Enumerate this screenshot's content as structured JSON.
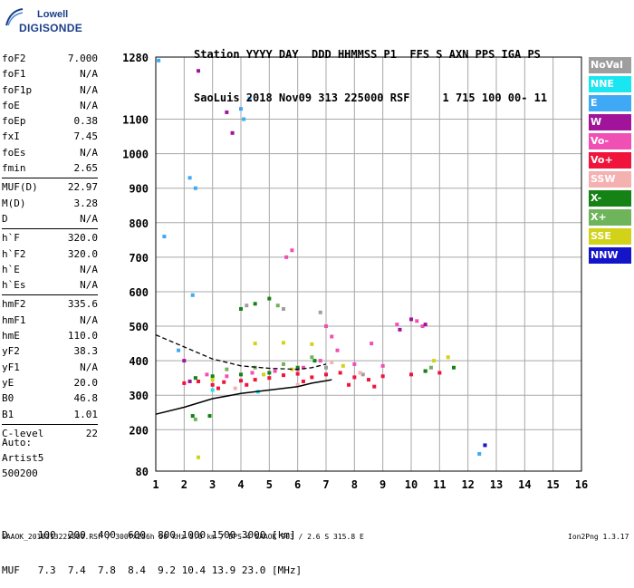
{
  "logo": {
    "top": "Lowell",
    "bottom": "DIGISONDE"
  },
  "header": {
    "line1": "Station YYYY DAY  DDD HHMMSS P1  FFS S AXN PPS IGA PS",
    "line2": "SaoLuis 2018 Nov09 313 225000 RSF     1 715 100 00- 11"
  },
  "params": [
    [
      {
        "k": "foF2",
        "v": "7.000"
      },
      {
        "k": "foF1",
        "v": "N/A"
      },
      {
        "k": "foF1p",
        "v": "N/A"
      },
      {
        "k": "foE",
        "v": "N/A"
      },
      {
        "k": "foEp",
        "v": "0.38"
      },
      {
        "k": "fxI",
        "v": "7.45"
      },
      {
        "k": "foEs",
        "v": "N/A"
      },
      {
        "k": "fmin",
        "v": "2.65"
      }
    ],
    [
      {
        "k": "MUF(D)",
        "v": "22.97"
      },
      {
        "k": "M(D)",
        "v": "3.28"
      },
      {
        "k": "D",
        "v": "N/A"
      }
    ],
    [
      {
        "k": "h`F",
        "v": "320.0"
      },
      {
        "k": "h`F2",
        "v": "320.0"
      },
      {
        "k": "h`E",
        "v": "N/A"
      },
      {
        "k": "h`Es",
        "v": "N/A"
      }
    ],
    [
      {
        "k": "hmF2",
        "v": "335.6"
      },
      {
        "k": "hmF1",
        "v": "N/A"
      },
      {
        "k": "hmE",
        "v": "110.0"
      },
      {
        "k": "yF2",
        "v": "38.3"
      },
      {
        "k": "yF1",
        "v": "N/A"
      },
      {
        "k": "yE",
        "v": "20.0"
      },
      {
        "k": "B0",
        "v": "46.8"
      },
      {
        "k": "B1",
        "v": "1.01"
      }
    ],
    [
      {
        "k": "C-level",
        "v": "22"
      }
    ]
  ],
  "auto": {
    "line1": "Auto:",
    "line2": "Artist5",
    "line3": "500200"
  },
  "legend": [
    {
      "label": "NoVal",
      "color": "#9e9e9e"
    },
    {
      "label": "NNE",
      "color": "#19e6f0"
    },
    {
      "label": "E",
      "color": "#3fa9f5"
    },
    {
      "label": "W",
      "color": "#a0139a"
    },
    {
      "label": "Vo-",
      "color": "#f050b4"
    },
    {
      "label": "Vo+",
      "color": "#f0143c"
    },
    {
      "label": "SSW",
      "color": "#f5b0b0"
    },
    {
      "label": "X-",
      "color": "#148214"
    },
    {
      "label": "X+",
      "color": "#6eb45a"
    },
    {
      "label": "SSE",
      "color": "#d2d219"
    },
    {
      "label": "NNW",
      "color": "#1414c8"
    }
  ],
  "dtable": {
    "line1": "D     100  200  400  600  800 1000 1500 3000 [km]",
    "line2": "MUF   7.3  7.4  7.8  8.4  9.2 10.4 13.9 23.0 [MHz]"
  },
  "footer": "SAAOK_2018313225000.RSF / 300fx256h 50 kHz 5.0 km / DPS-4 SAAOK 903 / 2.6 S 315.8 E",
  "version": "Ion2Png 1.3.17",
  "chart_data": {
    "type": "scatter",
    "title": "",
    "xlabel": "",
    "ylabel": "",
    "xlim": [
      1,
      16
    ],
    "ylim": [
      80,
      1280
    ],
    "x_ticks": [
      1,
      2,
      3,
      4,
      5,
      6,
      7,
      8,
      9,
      10,
      11,
      12,
      13,
      14,
      15,
      16
    ],
    "y_ticks": [
      80,
      200,
      300,
      400,
      500,
      600,
      700,
      800,
      900,
      1000,
      1100,
      1280
    ],
    "grid": true,
    "series": [
      {
        "color_key": "Vo+",
        "points": [
          [
            2.0,
            335
          ],
          [
            2.5,
            340
          ],
          [
            3.0,
            330
          ],
          [
            3.4,
            338
          ],
          [
            4.0,
            342
          ],
          [
            4.5,
            345
          ],
          [
            5.0,
            350
          ],
          [
            5.5,
            358
          ],
          [
            6.0,
            362
          ],
          [
            6.5,
            352
          ],
          [
            7.0,
            360
          ],
          [
            7.5,
            365
          ],
          [
            8.0,
            352
          ],
          [
            8.5,
            345
          ],
          [
            9.0,
            355
          ],
          [
            10.0,
            360
          ],
          [
            10.5,
            370
          ],
          [
            11.0,
            365
          ],
          [
            3.2,
            320
          ],
          [
            4.2,
            330
          ],
          [
            6.2,
            340
          ],
          [
            7.8,
            330
          ],
          [
            8.7,
            325
          ]
        ]
      },
      {
        "color_key": "Vo-",
        "points": [
          [
            2.8,
            360
          ],
          [
            3.5,
            355
          ],
          [
            4.4,
            365
          ],
          [
            5.2,
            370
          ],
          [
            6.0,
            375
          ],
          [
            6.8,
            400
          ],
          [
            7.2,
            470
          ],
          [
            7.4,
            430
          ],
          [
            8.0,
            390
          ],
          [
            9.0,
            385
          ],
          [
            9.5,
            505
          ],
          [
            10.2,
            515
          ],
          [
            10.4,
            500
          ],
          [
            5.6,
            700
          ],
          [
            5.8,
            720
          ],
          [
            6.2,
            380
          ],
          [
            8.6,
            450
          ],
          [
            7.0,
            500
          ]
        ]
      },
      {
        "color_key": "X-",
        "points": [
          [
            2.4,
            350
          ],
          [
            3.0,
            355
          ],
          [
            4.0,
            360
          ],
          [
            5.0,
            365
          ],
          [
            6.0,
            380
          ],
          [
            6.6,
            400
          ],
          [
            4.0,
            550
          ],
          [
            4.5,
            565
          ],
          [
            5.0,
            580
          ],
          [
            2.3,
            240
          ],
          [
            2.9,
            240
          ],
          [
            10.5,
            370
          ],
          [
            11.5,
            380
          ]
        ]
      },
      {
        "color_key": "X+",
        "points": [
          [
            3.5,
            375
          ],
          [
            4.5,
            380
          ],
          [
            5.5,
            390
          ],
          [
            6.5,
            410
          ],
          [
            10.7,
            380
          ],
          [
            5.3,
            560
          ],
          [
            2.4,
            230
          ]
        ]
      },
      {
        "color_key": "SSE",
        "points": [
          [
            3.0,
            345
          ],
          [
            4.8,
            360
          ],
          [
            5.8,
            375
          ],
          [
            7.6,
            385
          ],
          [
            10.8,
            400
          ],
          [
            11.3,
            410
          ],
          [
            4.5,
            450
          ],
          [
            5.5,
            452
          ],
          [
            6.5,
            448
          ],
          [
            2.5,
            120
          ]
        ]
      },
      {
        "color_key": "W",
        "points": [
          [
            2.2,
            340
          ],
          [
            2.5,
            1240
          ],
          [
            3.5,
            1120
          ],
          [
            3.7,
            1060
          ],
          [
            10.0,
            520
          ],
          [
            10.5,
            505
          ],
          [
            9.6,
            490
          ],
          [
            2.0,
            400
          ]
        ]
      },
      {
        "color_key": "E",
        "points": [
          [
            1.1,
            1270
          ],
          [
            1.3,
            760
          ],
          [
            2.2,
            930
          ],
          [
            2.4,
            900
          ],
          [
            4.0,
            1130
          ],
          [
            4.1,
            1100
          ],
          [
            4.3,
            1160
          ],
          [
            2.3,
            590
          ],
          [
            1.8,
            430
          ],
          [
            12.4,
            130
          ]
        ]
      },
      {
        "color_key": "NoVal",
        "points": [
          [
            4.2,
            560
          ],
          [
            5.5,
            550
          ],
          [
            7.0,
            380
          ],
          [
            8.3,
            360
          ],
          [
            6.8,
            540
          ]
        ]
      },
      {
        "color_key": "SSW",
        "points": [
          [
            6.0,
            330
          ],
          [
            7.2,
            395
          ],
          [
            8.2,
            365
          ],
          [
            3.8,
            320
          ]
        ]
      },
      {
        "color_key": "NNW",
        "points": [
          [
            12.6,
            155
          ]
        ]
      },
      {
        "color_key": "NNE",
        "points": [
          [
            3.0,
            315
          ],
          [
            4.6,
            310
          ]
        ]
      }
    ],
    "profile_solid": [
      [
        1.0,
        245
      ],
      [
        2.0,
        265
      ],
      [
        3.0,
        290
      ],
      [
        4.0,
        305
      ],
      [
        5.0,
        315
      ],
      [
        6.0,
        325
      ],
      [
        6.5,
        335
      ],
      [
        7.0,
        342
      ],
      [
        7.2,
        345
      ]
    ],
    "profile_dashed": [
      [
        1.0,
        475
      ],
      [
        2.0,
        440
      ],
      [
        3.0,
        405
      ],
      [
        4.0,
        385
      ],
      [
        5.0,
        378
      ],
      [
        6.0,
        375
      ],
      [
        6.5,
        380
      ],
      [
        7.0,
        390
      ]
    ]
  }
}
